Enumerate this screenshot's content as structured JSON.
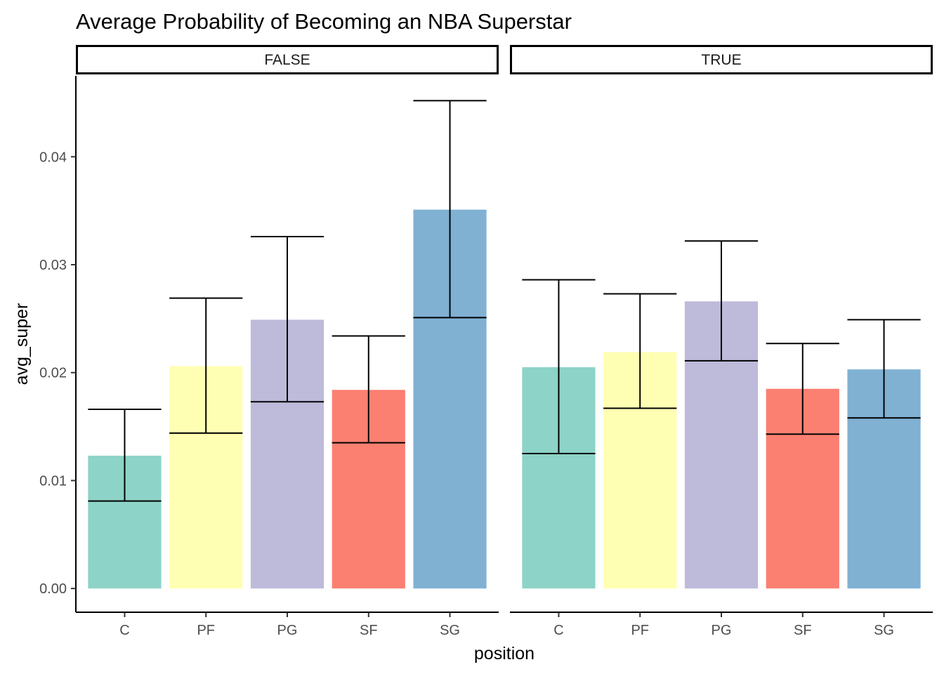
{
  "chart_data": {
    "type": "bar",
    "title": "Average Probability of Becoming an NBA Superstar",
    "xlabel": "position",
    "ylabel": "avg_super",
    "categories": [
      "C",
      "PF",
      "PG",
      "SF",
      "SG"
    ],
    "colors": [
      "#8DD3C7",
      "#FFFFB3",
      "#BEBADA",
      "#FB8072",
      "#80B1D3"
    ],
    "ylim": [
      -0.0022,
      0.0475
    ],
    "yticks": [
      0,
      0.01,
      0.02,
      0.03,
      0.04
    ],
    "ytick_labels": [
      "0.00",
      "0.01",
      "0.02",
      "0.03",
      "0.04"
    ],
    "grid": false,
    "legend": "none",
    "facets": [
      {
        "label": "FALSE",
        "values": [
          0.0123,
          0.0206,
          0.0249,
          0.0184,
          0.0351
        ],
        "error_low": [
          0.0081,
          0.0144,
          0.0173,
          0.0135,
          0.0251
        ],
        "error_high": [
          0.0166,
          0.0269,
          0.0326,
          0.0234,
          0.0452
        ]
      },
      {
        "label": "TRUE",
        "values": [
          0.0205,
          0.0219,
          0.0266,
          0.0185,
          0.0203
        ],
        "error_low": [
          0.0125,
          0.0167,
          0.0211,
          0.0143,
          0.0158
        ],
        "error_high": [
          0.0286,
          0.0273,
          0.0322,
          0.0227,
          0.0249
        ]
      }
    ]
  }
}
